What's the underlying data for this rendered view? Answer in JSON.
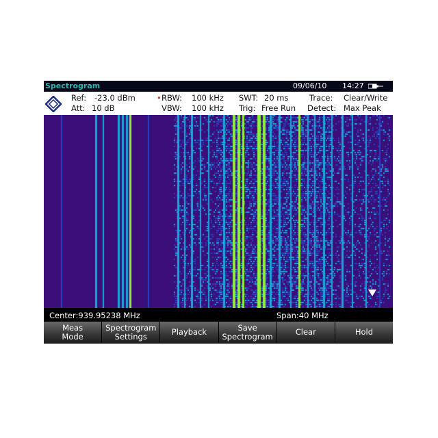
{
  "title": "Spectrogram",
  "date": "09/06/10",
  "time": "14:27",
  "settings": {
    "ref_label": "Ref:",
    "ref": "-23.0 dBm",
    "att_label": "Att:",
    "att": "10 dB",
    "rbw_label": "RBW:",
    "rbw": "100 kHz",
    "vbw_label": "VBW:",
    "vbw": "100 kHz",
    "swt_label": "SWT:",
    "swt": "20 ms",
    "trig_label": "Trig:",
    "trig": "Free Run",
    "trace_label": "Trace:",
    "trace": "Clear/Write",
    "detect_label": "Detect:",
    "detect": "Max Peak"
  },
  "status": {
    "center": "Center:939.95238 MHz",
    "span": "Span:40 MHz"
  },
  "softkeys": [
    {
      "l1": "Meas",
      "l2": "Mode"
    },
    {
      "l1": "Spectrogram",
      "l2": "Settings"
    },
    {
      "l1": "Playback",
      "l2": ""
    },
    {
      "l1": "Save",
      "l2": "Spectrogram"
    },
    {
      "l1": "Clear",
      "l2": ""
    },
    {
      "l1": "Hold",
      "l2": ""
    }
  ],
  "colors": {
    "background": "#3a0f7a",
    "low": "#2a3fc0",
    "mid": "#19a6d8",
    "high": "#8ef03a",
    "title": "#2fb8b0",
    "rbw_dot": "#e03030"
  }
}
